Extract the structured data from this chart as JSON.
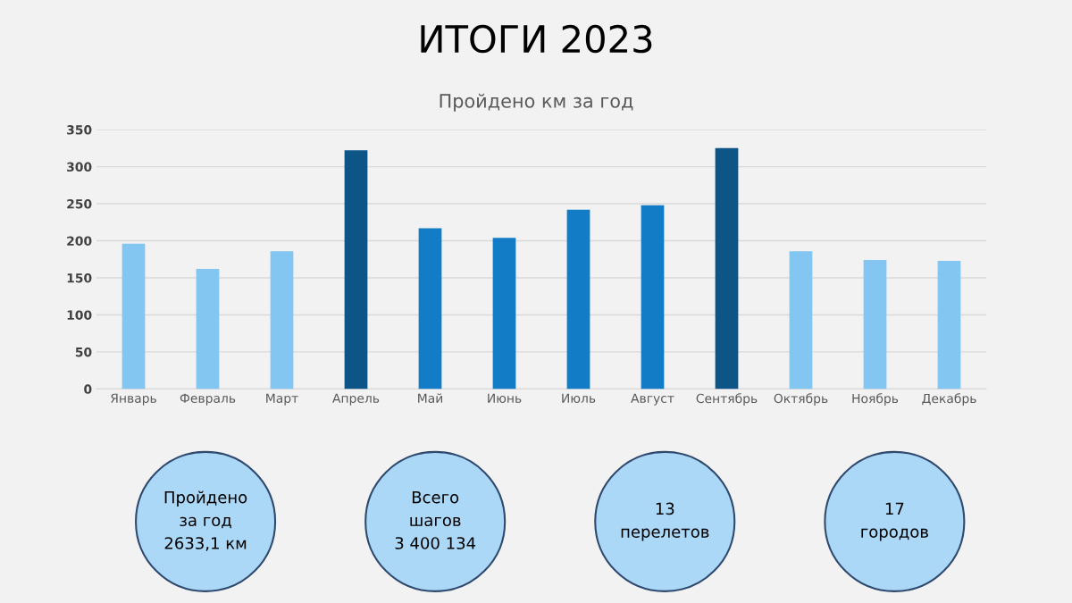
{
  "chart_data": [
    {
      "type": "bar",
      "title": "ИТОГИ 2023",
      "subtitle": "Пройдено км за год",
      "categories": [
        "Январь",
        "Февраль",
        "Март",
        "Апрель",
        "Май",
        "Июнь",
        "Июль",
        "Август",
        "Сентябрь",
        "Октябрь",
        "Ноябрь",
        "Декабрь"
      ],
      "values": [
        196,
        162,
        186,
        322,
        217,
        204,
        242,
        248,
        325,
        186,
        174,
        173
      ],
      "colors": [
        "#83c6f2",
        "#83c6f2",
        "#83c6f2",
        "#0e5587",
        "#127cc6",
        "#127cc6",
        "#127cc6",
        "#127cc6",
        "#0e5587",
        "#83c6f2",
        "#83c6f2",
        "#83c6f2"
      ],
      "ylim": [
        0,
        350
      ],
      "yticks": [
        0,
        50,
        100,
        150,
        200,
        250,
        300,
        350
      ],
      "grid": "y",
      "legend": false
    },
    {
      "type": "other",
      "annotations": [
        "Пройдено\nза год\n2633,1 км",
        "Всего\nшагов\n3 400 134",
        "13\nперелетов",
        "17\nгородов"
      ]
    }
  ]
}
